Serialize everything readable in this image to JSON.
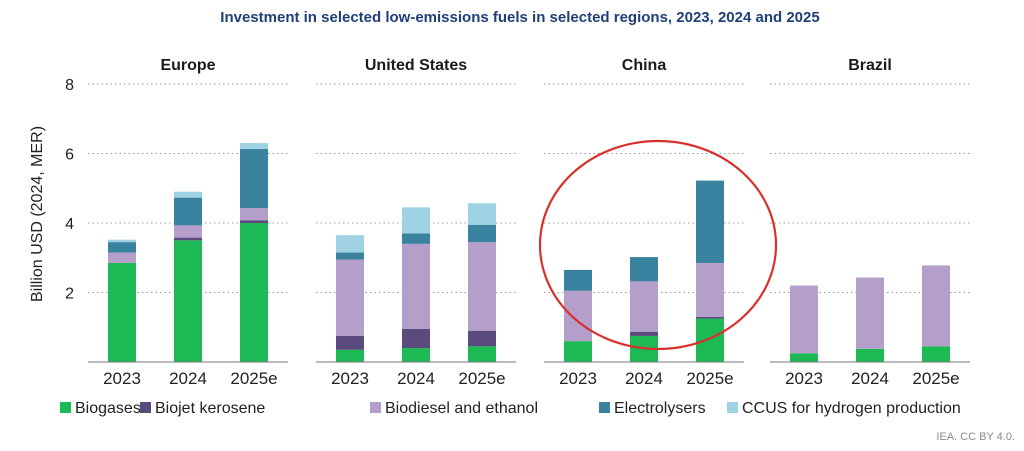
{
  "chart_data": {
    "type": "bar",
    "stacked": true,
    "title": "Investment in selected low-emissions fuels in selected regions, 2023, 2024 and 2025",
    "ylabel": "Billion USD (2024, MER)",
    "ylim": [
      0,
      8
    ],
    "yticks": [
      "2",
      "4",
      "6",
      "8"
    ],
    "categories": [
      "2023",
      "2024",
      "2025e"
    ],
    "grid": true,
    "legend_position": "bottom",
    "source": "IEA. CC BY 4.0.",
    "series_meta": [
      {
        "name": "Biogases",
        "color": "#1db954"
      },
      {
        "name": "Biojet kerosene",
        "color": "#5b4a7e"
      },
      {
        "name": "Biodiesel and ethanol",
        "color": "#b39fca"
      },
      {
        "name": "Electrolysers",
        "color": "#3a83a0"
      },
      {
        "name": "CCUS for hydrogen production",
        "color": "#9fd3e3"
      }
    ],
    "panels": [
      {
        "region": "Europe",
        "series": [
          [
            2.85,
            3.5,
            4.0
          ],
          [
            0.0,
            0.08,
            0.08
          ],
          [
            0.3,
            0.35,
            0.35
          ],
          [
            0.3,
            0.8,
            1.7
          ],
          [
            0.07,
            0.17,
            0.17
          ]
        ]
      },
      {
        "region": "United States",
        "series": [
          [
            0.35,
            0.4,
            0.45
          ],
          [
            0.4,
            0.55,
            0.45
          ],
          [
            2.2,
            2.45,
            2.55
          ],
          [
            0.2,
            0.3,
            0.5
          ],
          [
            0.5,
            0.75,
            0.62
          ]
        ]
      },
      {
        "region": "China",
        "series": [
          [
            0.6,
            0.75,
            1.25
          ],
          [
            0.0,
            0.12,
            0.05
          ],
          [
            1.45,
            1.45,
            1.55
          ],
          [
            0.6,
            0.7,
            2.37
          ],
          [
            0.0,
            0.0,
            0.0
          ]
        ]
      },
      {
        "region": "Brazil",
        "series": [
          [
            0.25,
            0.38,
            0.45
          ],
          [
            0.0,
            0.0,
            0.0
          ],
          [
            1.95,
            2.05,
            2.33
          ],
          [
            0.0,
            0.0,
            0.0
          ],
          [
            0.0,
            0.0,
            0.0
          ]
        ]
      }
    ],
    "annotation": {
      "type": "circle",
      "target_panel": "China",
      "color": "#d9302c"
    }
  }
}
